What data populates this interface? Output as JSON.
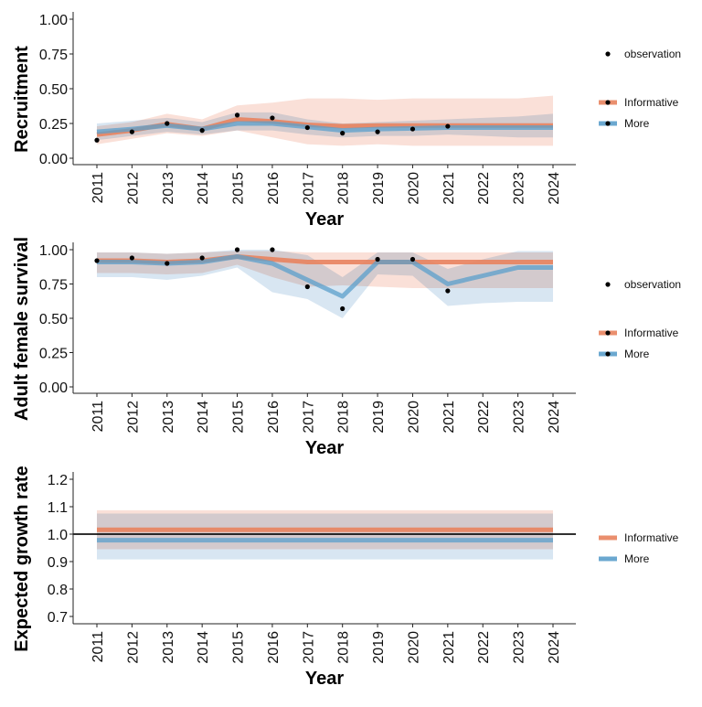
{
  "chart_data": [
    {
      "type": "line",
      "ylabel": "Recruitment",
      "xlabel": "Year",
      "ylim": [
        0,
        1
      ],
      "yticks": [
        "0.00",
        "0.25",
        "0.50",
        "0.75",
        "1.00"
      ],
      "ytick_values": [
        0,
        0.25,
        0.5,
        0.75,
        1.0
      ],
      "x": [
        2011,
        2012,
        2013,
        2014,
        2015,
        2016,
        2017,
        2018,
        2019,
        2020,
        2021,
        2022,
        2023,
        2024
      ],
      "observation": {
        "name": "observation",
        "x": [
          2011,
          2012,
          2013,
          2014,
          2015,
          2016,
          2017,
          2018,
          2019,
          2020,
          2021
        ],
        "y": [
          0.13,
          0.19,
          0.25,
          0.2,
          0.31,
          0.29,
          0.22,
          0.18,
          0.19,
          0.21,
          0.23
        ]
      },
      "series": [
        {
          "name": "Informative",
          "color": "#E8835F",
          "band_color": "#FAE0D8",
          "median": [
            0.17,
            0.2,
            0.245,
            0.21,
            0.28,
            0.265,
            0.24,
            0.23,
            0.235,
            0.235,
            0.235,
            0.235,
            0.235,
            0.235
          ],
          "lower": [
            0.1,
            0.14,
            0.18,
            0.16,
            0.2,
            0.15,
            0.1,
            0.09,
            0.1,
            0.09,
            0.09,
            0.09,
            0.09,
            0.09
          ],
          "upper": [
            0.23,
            0.26,
            0.32,
            0.28,
            0.38,
            0.4,
            0.43,
            0.43,
            0.42,
            0.43,
            0.43,
            0.43,
            0.43,
            0.45
          ]
        },
        {
          "name": "More",
          "color": "#5B9FCB",
          "band_color": "#D8E6F2",
          "median": [
            0.19,
            0.21,
            0.235,
            0.21,
            0.25,
            0.25,
            0.225,
            0.2,
            0.21,
            0.215,
            0.22,
            0.22,
            0.22,
            0.22
          ],
          "lower": [
            0.13,
            0.16,
            0.19,
            0.17,
            0.2,
            0.2,
            0.17,
            0.15,
            0.16,
            0.16,
            0.17,
            0.16,
            0.15,
            0.15
          ],
          "upper": [
            0.25,
            0.27,
            0.29,
            0.26,
            0.33,
            0.33,
            0.28,
            0.25,
            0.26,
            0.27,
            0.28,
            0.29,
            0.3,
            0.32
          ]
        }
      ],
      "legend": {
        "placement": "right",
        "observation_label": "observation",
        "show_points": true
      }
    },
    {
      "type": "line",
      "ylabel": "Adult female survival",
      "xlabel": "Year",
      "ylim": [
        0,
        1
      ],
      "yticks": [
        "0.00",
        "0.25",
        "0.50",
        "0.75",
        "1.00"
      ],
      "ytick_values": [
        0,
        0.25,
        0.5,
        0.75,
        1.0
      ],
      "x": [
        2011,
        2012,
        2013,
        2014,
        2015,
        2016,
        2017,
        2018,
        2019,
        2020,
        2021,
        2022,
        2023,
        2024
      ],
      "observation": {
        "name": "observation",
        "x": [
          2011,
          2012,
          2013,
          2014,
          2015,
          2016,
          2017,
          2018,
          2019,
          2020,
          2021
        ],
        "y": [
          0.92,
          0.94,
          0.9,
          0.94,
          1.0,
          1.0,
          0.73,
          0.57,
          0.93,
          0.93,
          0.7
        ]
      },
      "series": [
        {
          "name": "Informative",
          "color": "#E8835F",
          "band_color": "#FAE0D8",
          "median": [
            0.92,
            0.92,
            0.91,
            0.92,
            0.95,
            0.93,
            0.91,
            0.91,
            0.91,
            0.91,
            0.91,
            0.91,
            0.91,
            0.91
          ],
          "lower": [
            0.83,
            0.83,
            0.82,
            0.83,
            0.89,
            0.8,
            0.73,
            0.74,
            0.73,
            0.72,
            0.72,
            0.72,
            0.72,
            0.72
          ],
          "upper": [
            0.98,
            0.98,
            0.97,
            0.98,
            0.99,
            0.99,
            0.98,
            0.98,
            0.98,
            0.98,
            0.98,
            0.98,
            0.98,
            0.98
          ]
        },
        {
          "name": "More",
          "color": "#5B9FCB",
          "band_color": "#D8E6F2",
          "median": [
            0.91,
            0.91,
            0.9,
            0.91,
            0.95,
            0.9,
            0.78,
            0.66,
            0.91,
            0.91,
            0.75,
            0.81,
            0.87,
            0.87
          ],
          "lower": [
            0.8,
            0.8,
            0.78,
            0.81,
            0.87,
            0.69,
            0.64,
            0.5,
            0.82,
            0.81,
            0.59,
            0.61,
            0.62,
            0.62
          ],
          "upper": [
            0.98,
            0.98,
            0.97,
            0.98,
            1.0,
            1.0,
            0.96,
            0.8,
            0.98,
            0.98,
            0.86,
            0.93,
            0.99,
            0.99
          ]
        }
      ],
      "legend": {
        "placement": "right",
        "observation_label": "observation",
        "show_points": true
      }
    },
    {
      "type": "line",
      "ylabel": "Expected growth rate",
      "xlabel": "Year",
      "ylim": [
        0.7,
        1.2
      ],
      "yticks": [
        "0.7",
        "0.8",
        "0.9",
        "1.0",
        "1.1",
        "1.2"
      ],
      "ytick_values": [
        0.7,
        0.8,
        0.9,
        1.0,
        1.1,
        1.2
      ],
      "reference_line": 1.0,
      "x": [
        2011,
        2012,
        2013,
        2014,
        2015,
        2016,
        2017,
        2018,
        2019,
        2020,
        2021,
        2022,
        2023,
        2024
      ],
      "series": [
        {
          "name": "Informative",
          "color": "#E8835F",
          "band_color": "#FAE0D8",
          "median": [
            1.016,
            1.016,
            1.016,
            1.016,
            1.016,
            1.016,
            1.016,
            1.016,
            1.016,
            1.016,
            1.016,
            1.016,
            1.016,
            1.016
          ],
          "lower": [
            0.945,
            0.945,
            0.945,
            0.945,
            0.945,
            0.945,
            0.945,
            0.945,
            0.945,
            0.945,
            0.945,
            0.945,
            0.945,
            0.945
          ],
          "upper": [
            1.087,
            1.087,
            1.087,
            1.087,
            1.087,
            1.087,
            1.087,
            1.087,
            1.087,
            1.087,
            1.087,
            1.087,
            1.087,
            1.087
          ]
        },
        {
          "name": "More",
          "color": "#5B9FCB",
          "band_color": "#D8E6F2",
          "median": [
            0.978,
            0.978,
            0.978,
            0.978,
            0.978,
            0.978,
            0.978,
            0.978,
            0.978,
            0.978,
            0.978,
            0.978,
            0.978,
            0.978
          ],
          "lower": [
            0.908,
            0.908,
            0.908,
            0.908,
            0.908,
            0.908,
            0.908,
            0.908,
            0.908,
            0.908,
            0.908,
            0.908,
            0.908,
            0.908
          ],
          "upper": [
            1.075,
            1.075,
            1.075,
            1.075,
            1.075,
            1.075,
            1.075,
            1.075,
            1.075,
            1.075,
            1.075,
            1.075,
            1.075,
            1.075
          ]
        }
      ],
      "legend": {
        "placement": "right",
        "show_points": false
      }
    }
  ]
}
